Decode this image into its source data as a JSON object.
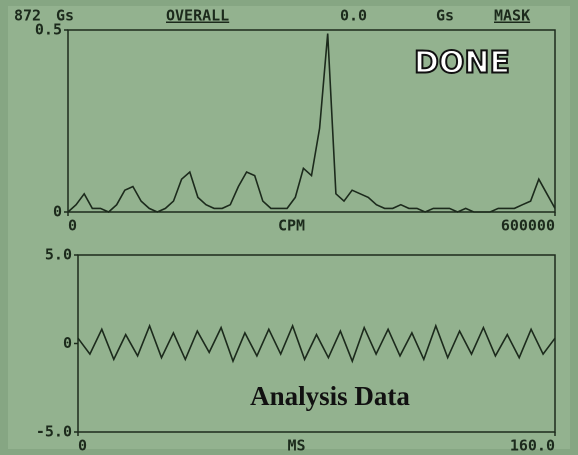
{
  "header": {
    "reading": "872",
    "reading_unit": "Gs",
    "mode": "OVERALL",
    "overall_value": "0.0",
    "overall_unit": "Gs",
    "mask": "MASK",
    "status": "DONE"
  },
  "chart_data": [
    {
      "type": "line",
      "xlabel": "CPM",
      "color": "#1c2a1c",
      "x": [
        0,
        10000,
        20000,
        30000,
        40000,
        50000,
        60000,
        70000,
        80000,
        90000,
        100000,
        110000,
        120000,
        130000,
        140000,
        150000,
        160000,
        170000,
        180000,
        190000,
        200000,
        210000,
        220000,
        230000,
        240000,
        250000,
        260000,
        270000,
        280000,
        290000,
        300000,
        310000,
        320000,
        330000,
        340000,
        350000,
        360000,
        370000,
        380000,
        390000,
        400000,
        410000,
        420000,
        430000,
        440000,
        450000,
        460000,
        470000,
        480000,
        490000,
        500000,
        510000,
        520000,
        530000,
        540000,
        550000,
        560000,
        570000,
        580000,
        590000,
        600000
      ],
      "values": [
        0.0,
        0.02,
        0.05,
        0.01,
        0.01,
        0.0,
        0.02,
        0.06,
        0.07,
        0.03,
        0.01,
        0.0,
        0.01,
        0.03,
        0.09,
        0.11,
        0.04,
        0.02,
        0.01,
        0.01,
        0.02,
        0.07,
        0.11,
        0.1,
        0.03,
        0.01,
        0.01,
        0.01,
        0.04,
        0.12,
        0.1,
        0.23,
        0.49,
        0.05,
        0.03,
        0.06,
        0.05,
        0.04,
        0.02,
        0.01,
        0.01,
        0.02,
        0.01,
        0.01,
        0.0,
        0.01,
        0.01,
        0.01,
        0.0,
        0.01,
        0.0,
        0.0,
        0.0,
        0.01,
        0.01,
        0.01,
        0.02,
        0.03,
        0.09,
        0.05,
        0.01
      ],
      "xlim": [
        0,
        600000
      ],
      "xticks": [
        0,
        600000
      ],
      "ylim": [
        0,
        0.5
      ],
      "yticks": [
        0,
        0.5
      ]
    },
    {
      "type": "line",
      "xlabel": "MS",
      "annotation": "Analysis Data",
      "color": "#1c2a1c",
      "x": [
        0,
        4,
        8,
        12,
        16,
        20,
        24,
        28,
        32,
        36,
        40,
        44,
        48,
        52,
        56,
        60,
        64,
        68,
        72,
        76,
        80,
        84,
        88,
        92,
        96,
        100,
        104,
        108,
        112,
        116,
        120,
        124,
        128,
        132,
        136,
        140,
        144,
        148,
        152,
        156,
        160
      ],
      "values": [
        0.3,
        -0.6,
        0.8,
        -0.9,
        0.5,
        -0.7,
        1.0,
        -0.8,
        0.6,
        -0.9,
        0.7,
        -0.5,
        0.9,
        -1.0,
        0.6,
        -0.7,
        0.8,
        -0.6,
        1.0,
        -0.9,
        0.5,
        -0.8,
        0.7,
        -1.0,
        0.9,
        -0.6,
        0.8,
        -0.7,
        0.6,
        -0.9,
        1.0,
        -0.8,
        0.7,
        -0.6,
        0.9,
        -0.7,
        0.5,
        -0.8,
        0.8,
        -0.6,
        0.3
      ],
      "xlim": [
        0,
        160
      ],
      "xticks": [
        0,
        {
          "value": 160,
          "label": "160.0"
        }
      ],
      "ylim": [
        -5,
        5
      ],
      "yticks": [
        {
          "value": -5,
          "label": "-5.0"
        },
        0,
        {
          "value": 5,
          "label": "5.0"
        }
      ]
    }
  ]
}
